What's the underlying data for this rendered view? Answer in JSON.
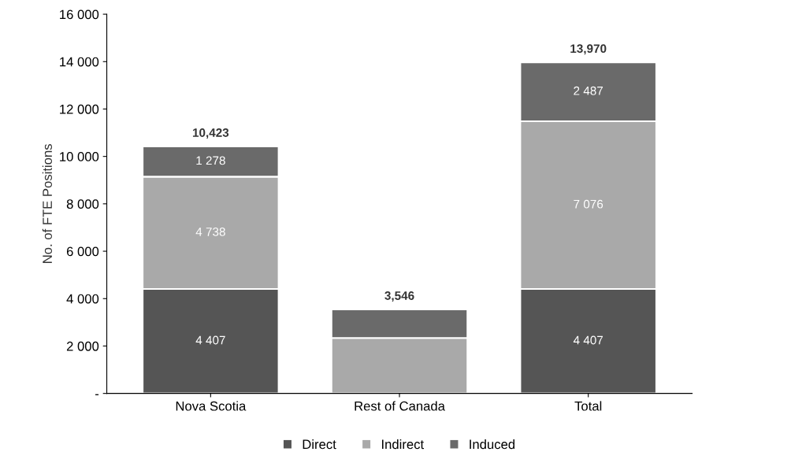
{
  "chart_data": {
    "type": "bar",
    "stacked": true,
    "ylabel": "No. of FTE Positions",
    "categories": [
      "Nova Scotia",
      "Rest of Canada",
      "Total"
    ],
    "series": [
      {
        "name": "Direct",
        "color": "#555555",
        "values": [
          4407,
          0,
          4407
        ],
        "value_labels": [
          "4 407",
          null,
          "4 407"
        ]
      },
      {
        "name": "Indirect",
        "color": "#a9a9a9",
        "values": [
          4738,
          2338,
          7076
        ],
        "value_labels": [
          "4 738",
          null,
          "7 076"
        ]
      },
      {
        "name": "Induced",
        "color": "#6a6a6a",
        "values": [
          1278,
          1208,
          2487
        ],
        "value_labels": [
          "1 278",
          null,
          "2 487"
        ]
      }
    ],
    "totals": [
      "10,423",
      "3,546",
      "13,970"
    ],
    "ylim": [
      0,
      16000
    ],
    "yticks": [
      {
        "value": 0,
        "label": "-"
      },
      {
        "value": 2000,
        "label": "2 000"
      },
      {
        "value": 4000,
        "label": "4 000"
      },
      {
        "value": 6000,
        "label": "6 000"
      },
      {
        "value": 8000,
        "label": "8 000"
      },
      {
        "value": 10000,
        "label": "10 000"
      },
      {
        "value": 12000,
        "label": "12 000"
      },
      {
        "value": 14000,
        "label": "14 000"
      },
      {
        "value": 16000,
        "label": "16 000"
      }
    ],
    "grid": false,
    "legend": "bottom"
  }
}
